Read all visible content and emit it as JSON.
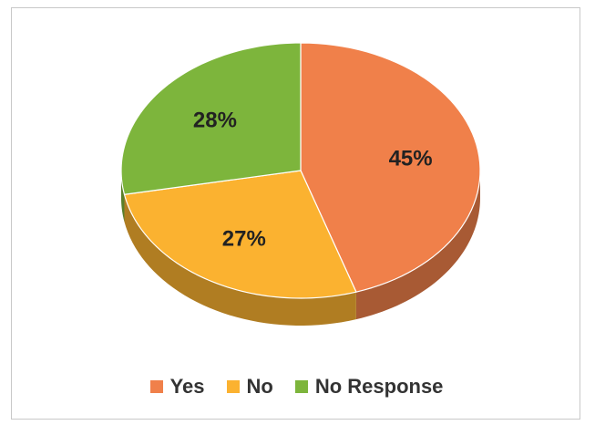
{
  "chart_data": {
    "type": "pie",
    "title": "",
    "categories": [
      "Yes",
      "No",
      "No Response"
    ],
    "values": [
      45,
      27,
      28
    ],
    "labels": [
      "45%",
      "27%",
      "28%"
    ],
    "colors": [
      "#f0804a",
      "#fbb230",
      "#7db53c"
    ],
    "legend_position": "bottom",
    "style": "3d"
  },
  "legend": {
    "items": [
      {
        "label": "Yes",
        "color": "#f0804a"
      },
      {
        "label": "No",
        "color": "#fbb230"
      },
      {
        "label": "No Response",
        "color": "#7db53c"
      }
    ]
  }
}
